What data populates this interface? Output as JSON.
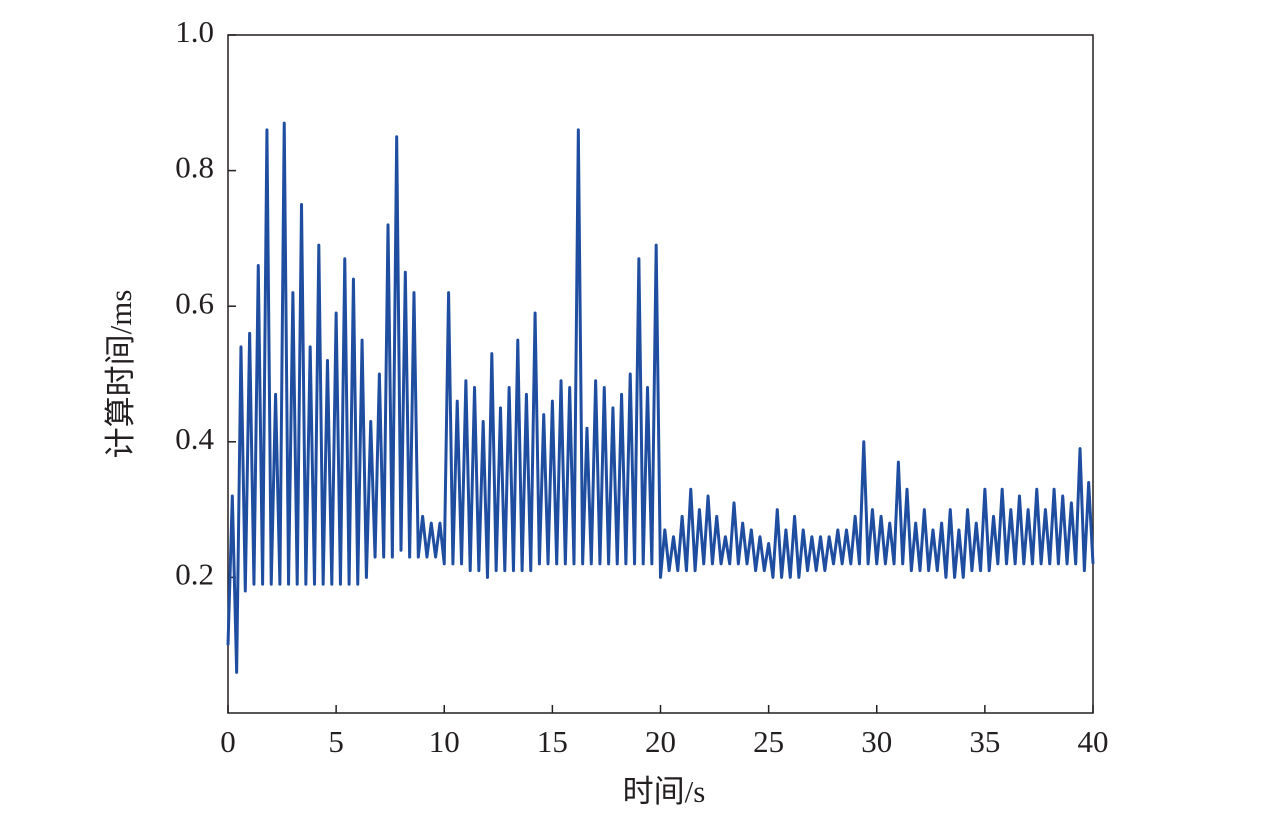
{
  "chart_data": {
    "type": "line",
    "x_label": "时间/s",
    "y_label": "计算时间/ms",
    "color": "#1f4ea1",
    "xlim": [
      0,
      40
    ],
    "xticks": [
      0,
      5,
      10,
      15,
      20,
      25,
      30,
      35,
      40
    ],
    "ylim": [
      0,
      1
    ],
    "yticks": [
      0.2,
      0.4,
      0.6,
      0.8,
      {
        "value": 1,
        "label": "1.0"
      }
    ],
    "x": [
      0,
      0.2,
      0.4,
      0.6,
      0.8,
      1,
      1.2,
      1.4,
      1.6,
      1.8,
      2,
      2.2,
      2.4,
      2.6,
      2.8,
      3,
      3.2,
      3.4,
      3.6,
      3.8,
      4,
      4.2,
      4.4,
      4.6,
      4.8,
      5,
      5.2,
      5.4,
      5.6,
      5.8,
      6,
      6.2,
      6.4,
      6.6,
      6.8,
      7,
      7.2,
      7.4,
      7.6,
      7.8,
      8,
      8.2,
      8.4,
      8.6,
      8.8,
      9,
      9.2,
      9.4,
      9.6,
      9.8,
      10,
      10.2,
      10.4,
      10.6,
      10.8,
      11,
      11.2,
      11.4,
      11.6,
      11.8,
      12,
      12.2,
      12.4,
      12.6,
      12.8,
      13,
      13.2,
      13.4,
      13.6,
      13.8,
      14,
      14.2,
      14.4,
      14.6,
      14.8,
      15,
      15.2,
      15.4,
      15.6,
      15.8,
      16,
      16.2,
      16.4,
      16.6,
      16.8,
      17,
      17.2,
      17.4,
      17.6,
      17.8,
      18,
      18.2,
      18.4,
      18.6,
      18.8,
      19,
      19.2,
      19.4,
      19.6,
      19.8,
      20,
      20.2,
      20.4,
      20.6,
      20.8,
      21,
      21.2,
      21.4,
      21.6,
      21.8,
      22,
      22.2,
      22.4,
      22.6,
      22.8,
      23,
      23.2,
      23.4,
      23.6,
      23.8,
      24,
      24.2,
      24.4,
      24.6,
      24.8,
      25,
      25.2,
      25.4,
      25.6,
      25.8,
      26,
      26.2,
      26.4,
      26.6,
      26.8,
      27,
      27.2,
      27.4,
      27.6,
      27.8,
      28,
      28.2,
      28.4,
      28.6,
      28.8,
      29,
      29.2,
      29.4,
      29.6,
      29.8,
      30,
      30.2,
      30.4,
      30.6,
      30.8,
      31,
      31.2,
      31.4,
      31.6,
      31.8,
      32,
      32.2,
      32.4,
      32.6,
      32.8,
      33,
      33.2,
      33.4,
      33.6,
      33.8,
      34,
      34.2,
      34.4,
      34.6,
      34.8,
      35,
      35.2,
      35.4,
      35.6,
      35.8,
      36,
      36.2,
      36.4,
      36.6,
      36.8,
      37,
      37.2,
      37.4,
      37.6,
      37.8,
      38,
      38.2,
      38.4,
      38.6,
      38.8,
      39,
      39.2,
      39.4,
      39.6,
      39.8,
      40
    ],
    "values": [
      0.1,
      0.32,
      0.06,
      0.54,
      0.18,
      0.56,
      0.19,
      0.66,
      0.19,
      0.86,
      0.19,
      0.47,
      0.19,
      0.87,
      0.19,
      0.62,
      0.19,
      0.75,
      0.19,
      0.54,
      0.19,
      0.69,
      0.19,
      0.52,
      0.19,
      0.59,
      0.19,
      0.67,
      0.19,
      0.64,
      0.19,
      0.55,
      0.2,
      0.43,
      0.23,
      0.5,
      0.23,
      0.72,
      0.23,
      0.85,
      0.24,
      0.65,
      0.23,
      0.62,
      0.23,
      0.29,
      0.23,
      0.28,
      0.23,
      0.28,
      0.22,
      0.62,
      0.22,
      0.46,
      0.22,
      0.49,
      0.21,
      0.48,
      0.21,
      0.43,
      0.2,
      0.53,
      0.21,
      0.45,
      0.21,
      0.48,
      0.21,
      0.55,
      0.21,
      0.47,
      0.21,
      0.59,
      0.22,
      0.44,
      0.22,
      0.46,
      0.22,
      0.49,
      0.22,
      0.48,
      0.22,
      0.86,
      0.22,
      0.42,
      0.22,
      0.49,
      0.22,
      0.48,
      0.22,
      0.45,
      0.22,
      0.47,
      0.22,
      0.5,
      0.22,
      0.67,
      0.22,
      0.48,
      0.22,
      0.69,
      0.2,
      0.27,
      0.21,
      0.26,
      0.21,
      0.29,
      0.21,
      0.33,
      0.21,
      0.3,
      0.22,
      0.32,
      0.22,
      0.29,
      0.22,
      0.26,
      0.22,
      0.31,
      0.22,
      0.28,
      0.22,
      0.27,
      0.21,
      0.26,
      0.21,
      0.25,
      0.2,
      0.3,
      0.2,
      0.27,
      0.2,
      0.29,
      0.2,
      0.27,
      0.21,
      0.26,
      0.21,
      0.26,
      0.21,
      0.26,
      0.22,
      0.27,
      0.22,
      0.27,
      0.22,
      0.29,
      0.22,
      0.4,
      0.22,
      0.3,
      0.22,
      0.29,
      0.22,
      0.28,
      0.22,
      0.37,
      0.22,
      0.33,
      0.21,
      0.28,
      0.21,
      0.3,
      0.21,
      0.27,
      0.21,
      0.28,
      0.2,
      0.3,
      0.2,
      0.27,
      0.2,
      0.3,
      0.21,
      0.28,
      0.21,
      0.33,
      0.21,
      0.29,
      0.22,
      0.33,
      0.22,
      0.3,
      0.22,
      0.32,
      0.22,
      0.3,
      0.22,
      0.33,
      0.22,
      0.3,
      0.22,
      0.33,
      0.22,
      0.32,
      0.22,
      0.31,
      0.22,
      0.39,
      0.21,
      0.34,
      0.22
    ]
  }
}
